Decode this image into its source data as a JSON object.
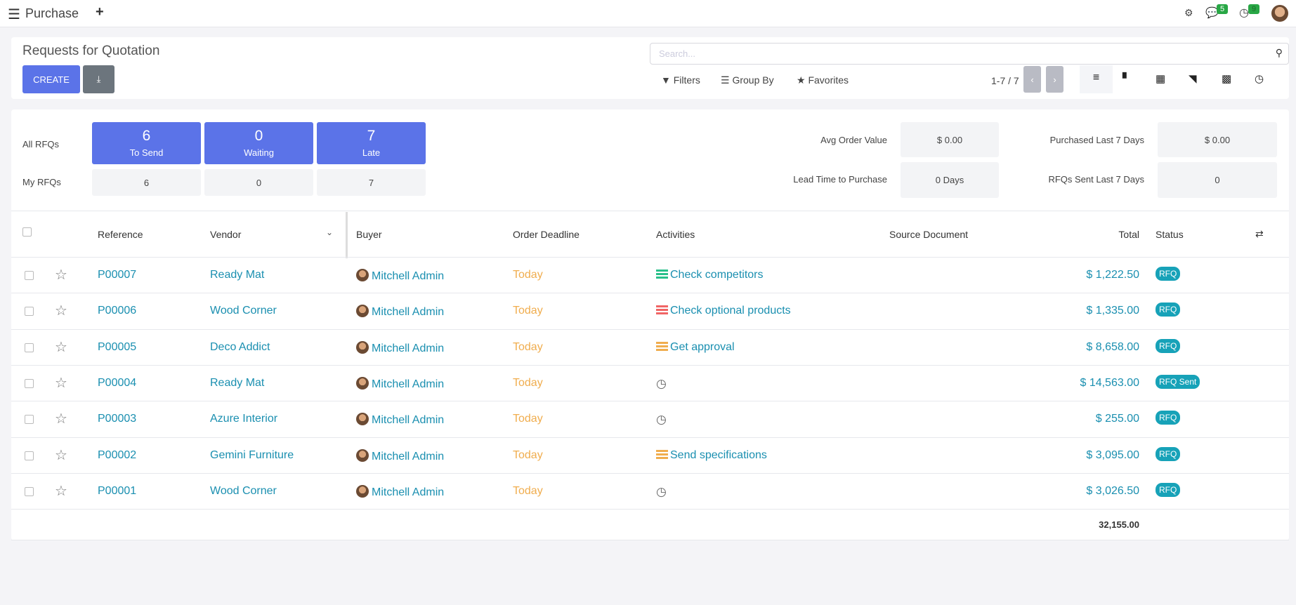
{
  "topbar": {
    "app_title": "Purchase",
    "messages_count": "5",
    "activities_count": "9"
  },
  "control": {
    "title": "Requests for Quotation",
    "create_label": "CREATE",
    "search_placeholder": "Search...",
    "filters": "Filters",
    "group_by": "Group By",
    "favorites": "Favorites",
    "pager": "1-7 / 7"
  },
  "dashboard": {
    "all_label": "All RFQs",
    "my_label": "My RFQs",
    "tiles": [
      {
        "value": "6",
        "label": "To Send",
        "my": "6"
      },
      {
        "value": "0",
        "label": "Waiting",
        "my": "0"
      },
      {
        "value": "7",
        "label": "Late",
        "my": "7"
      }
    ],
    "stats": [
      {
        "label": "Avg Order Value",
        "value": "$ 0.00"
      },
      {
        "label": "Purchased Last 7 Days",
        "value": "$ 0.00"
      },
      {
        "label": "Lead Time to Purchase",
        "value": "0 Days"
      },
      {
        "label": "RFQs Sent Last 7 Days",
        "value": "0"
      }
    ]
  },
  "table": {
    "columns": [
      "Reference",
      "Vendor",
      "Buyer",
      "Order Deadline",
      "Activities",
      "Source Document",
      "Total",
      "Status"
    ],
    "rows": [
      {
        "ref": "P00007",
        "vendor": "Ready Mat",
        "buyer": "Mitchell Admin",
        "deadline": "Today",
        "activity": "Check competitors",
        "activity_color": "#28c08a",
        "total": "$ 1,222.50",
        "status": "RFQ"
      },
      {
        "ref": "P00006",
        "vendor": "Wood Corner",
        "buyer": "Mitchell Admin",
        "deadline": "Today",
        "activity": "Check optional products",
        "activity_color": "#f06565",
        "total": "$ 1,335.00",
        "status": "RFQ"
      },
      {
        "ref": "P00005",
        "vendor": "Deco Addict",
        "buyer": "Mitchell Admin",
        "deadline": "Today",
        "activity": "Get approval",
        "activity_color": "#f0ad4e",
        "total": "$ 8,658.00",
        "status": "RFQ"
      },
      {
        "ref": "P00004",
        "vendor": "Ready Mat",
        "buyer": "Mitchell Admin",
        "deadline": "Today",
        "activity": "",
        "activity_color": "",
        "total": "$ 14,563.00",
        "status": "RFQ Sent"
      },
      {
        "ref": "P00003",
        "vendor": "Azure Interior",
        "buyer": "Mitchell Admin",
        "deadline": "Today",
        "activity": "",
        "activity_color": "",
        "total": "$ 255.00",
        "status": "RFQ"
      },
      {
        "ref": "P00002",
        "vendor": "Gemini Furniture",
        "buyer": "Mitchell Admin",
        "deadline": "Today",
        "activity": "Send specifications",
        "activity_color": "#f0ad4e",
        "total": "$ 3,095.00",
        "status": "RFQ"
      },
      {
        "ref": "P00001",
        "vendor": "Wood Corner",
        "buyer": "Mitchell Admin",
        "deadline": "Today",
        "activity": "",
        "activity_color": "",
        "total": "$ 3,026.50",
        "status": "RFQ"
      }
    ],
    "sum_total": "32,155.00"
  }
}
